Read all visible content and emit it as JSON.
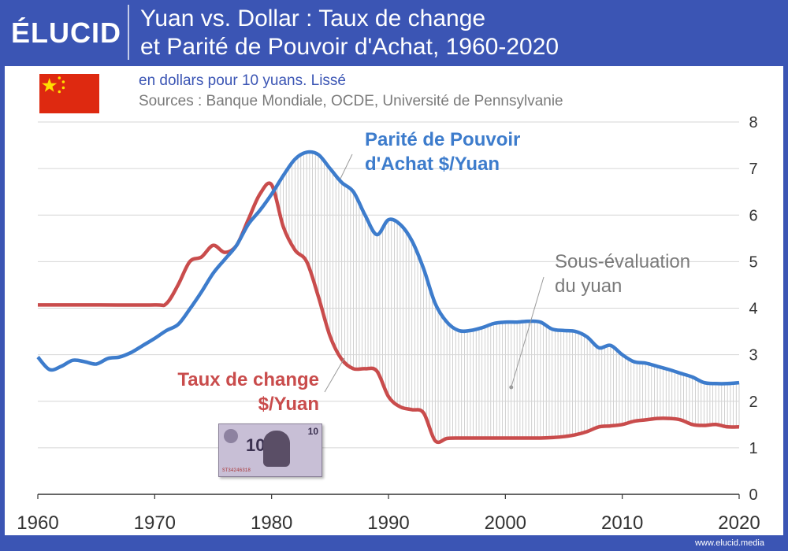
{
  "header": {
    "logo": "ÉLUCID",
    "title_line1": "Yuan vs. Dollar : Taux de change",
    "title_line2": "et Parité de Pouvoir d'Achat, 1960-2020"
  },
  "subtitle": "en dollars pour 10 yuans. Lissé",
  "sources": "Sources : Banque Mondiale, OCDE, Université de Pennsylvanie",
  "footer": "www.elucid.media",
  "banknote": {
    "num": "10",
    "num_small": "10",
    "serial": "ST34246318"
  },
  "flag": {
    "icon": "china-flag-icon",
    "color": "#de2910",
    "star_color": "#ffde00"
  },
  "colors": {
    "ppp": "#3d7ccc",
    "exchange": "#c94c4c",
    "brand": "#3b55b4",
    "axis_text": "#333333",
    "annotation": "#7a7a7a"
  },
  "chart_data": {
    "type": "line",
    "xlim": [
      1960,
      2020
    ],
    "ylim": [
      0,
      8
    ],
    "x_ticks": [
      1960,
      1970,
      1980,
      1990,
      2000,
      2010,
      2020
    ],
    "y_ticks": [
      0,
      1,
      2,
      3,
      4,
      5,
      6,
      7,
      8
    ],
    "y_axis_side": "right",
    "grid": "horizontal",
    "series": [
      {
        "name": "Parité de Pouvoir d'Achat $/Yuan",
        "label_line1": "Parité de Pouvoir",
        "label_line2": "d'Achat $/Yuan",
        "color": "#3d7ccc",
        "points": [
          [
            1960,
            2.95
          ],
          [
            1961,
            2.68
          ],
          [
            1962,
            2.75
          ],
          [
            1963,
            2.88
          ],
          [
            1964,
            2.85
          ],
          [
            1965,
            2.8
          ],
          [
            1966,
            2.92
          ],
          [
            1967,
            2.95
          ],
          [
            1968,
            3.05
          ],
          [
            1969,
            3.2
          ],
          [
            1970,
            3.35
          ],
          [
            1971,
            3.52
          ],
          [
            1972,
            3.65
          ],
          [
            1973,
            3.98
          ],
          [
            1974,
            4.35
          ],
          [
            1975,
            4.75
          ],
          [
            1976,
            5.05
          ],
          [
            1977,
            5.35
          ],
          [
            1978,
            5.8
          ],
          [
            1979,
            6.1
          ],
          [
            1980,
            6.45
          ],
          [
            1981,
            6.85
          ],
          [
            1982,
            7.2
          ],
          [
            1983,
            7.35
          ],
          [
            1984,
            7.3
          ],
          [
            1985,
            7.0
          ],
          [
            1986,
            6.7
          ],
          [
            1987,
            6.5
          ],
          [
            1988,
            6.0
          ],
          [
            1989,
            5.58
          ],
          [
            1990,
            5.9
          ],
          [
            1991,
            5.8
          ],
          [
            1992,
            5.45
          ],
          [
            1993,
            4.85
          ],
          [
            1994,
            4.1
          ],
          [
            1995,
            3.7
          ],
          [
            1996,
            3.52
          ],
          [
            1997,
            3.52
          ],
          [
            1998,
            3.58
          ],
          [
            1999,
            3.67
          ],
          [
            2000,
            3.7
          ],
          [
            2001,
            3.7
          ],
          [
            2002,
            3.72
          ],
          [
            2003,
            3.7
          ],
          [
            2004,
            3.55
          ],
          [
            2005,
            3.52
          ],
          [
            2006,
            3.5
          ],
          [
            2007,
            3.38
          ],
          [
            2008,
            3.15
          ],
          [
            2009,
            3.2
          ],
          [
            2010,
            3.0
          ],
          [
            2011,
            2.85
          ],
          [
            2012,
            2.82
          ],
          [
            2013,
            2.75
          ],
          [
            2014,
            2.68
          ],
          [
            2015,
            2.6
          ],
          [
            2016,
            2.52
          ],
          [
            2017,
            2.4
          ],
          [
            2018,
            2.38
          ],
          [
            2019,
            2.38
          ],
          [
            2020,
            2.4
          ]
        ]
      },
      {
        "name": "Taux de change $/Yuan",
        "label_line1": "Taux de change",
        "label_line2": "$/Yuan",
        "color": "#c94c4c",
        "points": [
          [
            1960,
            4.07
          ],
          [
            1965,
            4.07
          ],
          [
            1970,
            4.07
          ],
          [
            1971,
            4.1
          ],
          [
            1972,
            4.5
          ],
          [
            1973,
            5.0
          ],
          [
            1974,
            5.1
          ],
          [
            1975,
            5.35
          ],
          [
            1976,
            5.2
          ],
          [
            1977,
            5.35
          ],
          [
            1978,
            5.9
          ],
          [
            1979,
            6.45
          ],
          [
            1980,
            6.65
          ],
          [
            1981,
            5.75
          ],
          [
            1982,
            5.25
          ],
          [
            1983,
            5.0
          ],
          [
            1984,
            4.25
          ],
          [
            1985,
            3.4
          ],
          [
            1986,
            2.9
          ],
          [
            1987,
            2.7
          ],
          [
            1988,
            2.7
          ],
          [
            1989,
            2.65
          ],
          [
            1990,
            2.1
          ],
          [
            1991,
            1.88
          ],
          [
            1992,
            1.82
          ],
          [
            1993,
            1.75
          ],
          [
            1994,
            1.15
          ],
          [
            1995,
            1.2
          ],
          [
            1996,
            1.21
          ],
          [
            1997,
            1.21
          ],
          [
            1998,
            1.21
          ],
          [
            1999,
            1.21
          ],
          [
            2000,
            1.21
          ],
          [
            2001,
            1.21
          ],
          [
            2002,
            1.21
          ],
          [
            2003,
            1.21
          ],
          [
            2004,
            1.22
          ],
          [
            2005,
            1.24
          ],
          [
            2006,
            1.28
          ],
          [
            2007,
            1.35
          ],
          [
            2008,
            1.45
          ],
          [
            2009,
            1.47
          ],
          [
            2010,
            1.5
          ],
          [
            2011,
            1.57
          ],
          [
            2012,
            1.6
          ],
          [
            2013,
            1.63
          ],
          [
            2014,
            1.63
          ],
          [
            2015,
            1.6
          ],
          [
            2016,
            1.5
          ],
          [
            2017,
            1.48
          ],
          [
            2018,
            1.5
          ],
          [
            2019,
            1.45
          ],
          [
            2020,
            1.45
          ]
        ]
      }
    ],
    "annotation": {
      "line1": "Sous-évaluation",
      "line2": "du yuan",
      "point": [
        2000.5,
        2.3
      ]
    }
  }
}
